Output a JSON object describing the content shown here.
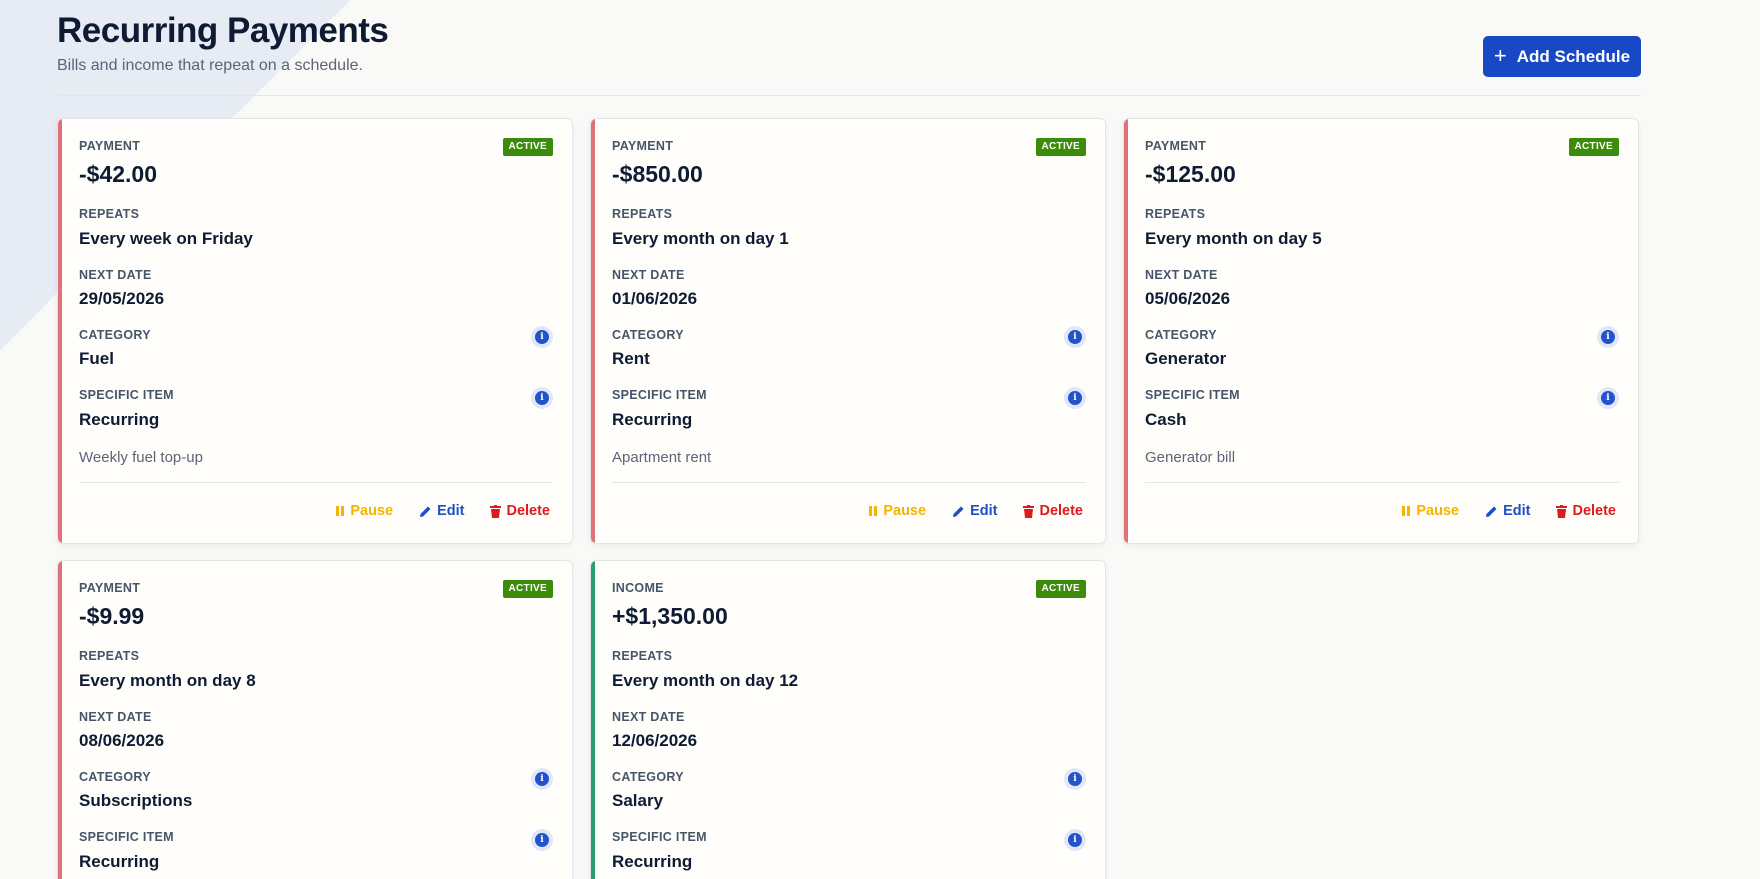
{
  "header": {
    "title": "Recurring Payments",
    "subtitle": "Bills and income that repeat on a schedule.",
    "add_label": "Add Schedule"
  },
  "colors": {
    "payment_accent": "#e0707a",
    "income_accent": "#2a9d6e",
    "badge_active": "#3c8c0c",
    "primary": "#1848c4"
  },
  "labels": {
    "repeats": "REPEATS",
    "next_date": "NEXT DATE",
    "category": "CATEGORY",
    "specific_item": "SPECIFIC ITEM",
    "pause": "Pause",
    "edit": "Edit",
    "delete": "Delete"
  },
  "cards": [
    {
      "type": "PAYMENT",
      "status": "ACTIVE",
      "amount": "-$42.00",
      "repeats": "Every week on Friday",
      "next_date": "29/05/2026",
      "category": "Fuel",
      "specific_item": "Recurring",
      "note": "Weekly fuel top-up"
    },
    {
      "type": "PAYMENT",
      "status": "ACTIVE",
      "amount": "-$850.00",
      "repeats": "Every month on day 1",
      "next_date": "01/06/2026",
      "category": "Rent",
      "specific_item": "Recurring",
      "note": "Apartment rent"
    },
    {
      "type": "PAYMENT",
      "status": "ACTIVE",
      "amount": "-$125.00",
      "repeats": "Every month on day 5",
      "next_date": "05/06/2026",
      "category": "Generator",
      "specific_item": "Cash",
      "note": "Generator bill"
    },
    {
      "type": "PAYMENT",
      "status": "ACTIVE",
      "amount": "-$9.99",
      "repeats": "Every month on day 8",
      "next_date": "08/06/2026",
      "category": "Subscriptions",
      "specific_item": "Recurring",
      "note": ""
    },
    {
      "type": "INCOME",
      "status": "ACTIVE",
      "amount": "+$1,350.00",
      "repeats": "Every month on day 12",
      "next_date": "12/06/2026",
      "category": "Salary",
      "specific_item": "Recurring",
      "note": ""
    }
  ]
}
